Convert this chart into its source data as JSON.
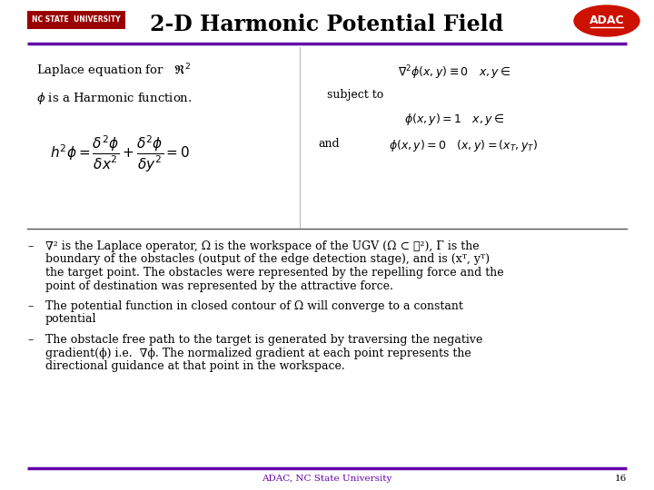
{
  "bg_color": "#ffffff",
  "title_text": "2-D Harmonic Potential Field",
  "title_fontsize": 17,
  "title_color": "#000000",
  "nc_state_label": "NC STATE  UNIVERSITY",
  "nc_state_bg": "#990000",
  "nc_state_fg": "#ffffff",
  "nc_state_fontsize": 5.5,
  "adac_label": "ADAC",
  "adac_bg": "#cc1100",
  "adac_fg": "#ffffff",
  "adac_fontsize": 9,
  "purple_line_color": "#6600aa",
  "separator_color": "#888888",
  "footer_text": "ADAC, NC State University",
  "footer_page": "16",
  "footer_color": "#6600aa",
  "footer_fontsize": 7.5
}
